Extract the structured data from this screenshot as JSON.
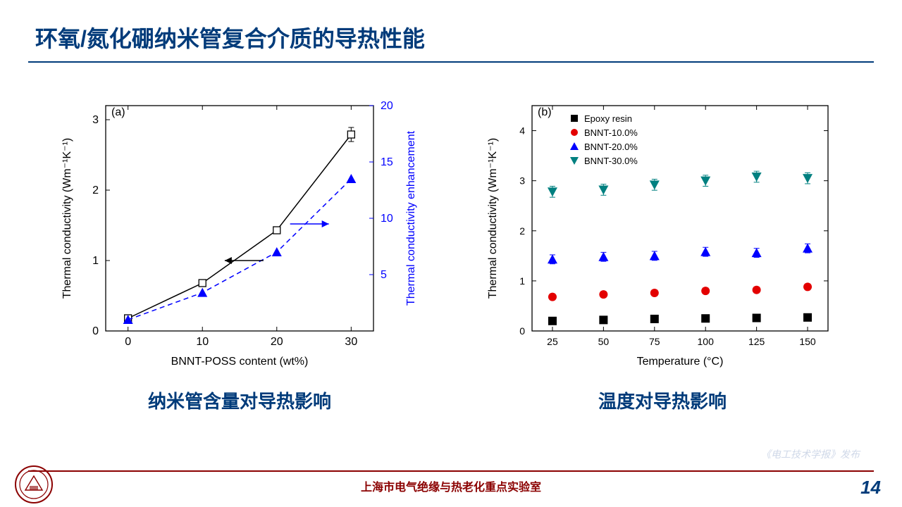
{
  "title": "环氧/氮化硼纳米管复合介质的导热性能",
  "chart_a": {
    "label": "(a)",
    "caption": "纳米管含量对导热影响",
    "xlabel": "BNNT-POSS content (wt%)",
    "ylabel_left": "Thermal conductivity (Wm⁻¹K⁻¹)",
    "ylabel_right": "Thermal conductivity enhancement",
    "x_ticks": [
      0,
      10,
      20,
      30
    ],
    "y1_ticks": [
      0,
      1,
      2,
      3
    ],
    "y2_ticks": [
      5,
      10,
      15,
      20
    ],
    "xlim": [
      -3,
      33
    ],
    "y1lim": [
      0,
      3.2
    ],
    "y2lim": [
      0,
      20
    ],
    "series1": {
      "name": "thermal-conductivity",
      "color": "#000000",
      "marker": "open-square",
      "line_dash": "solid",
      "data": [
        {
          "x": 0,
          "y": 0.18
        },
        {
          "x": 10,
          "y": 0.68
        },
        {
          "x": 20,
          "y": 1.43
        },
        {
          "x": 30,
          "y": 2.79
        }
      ],
      "error_bars": [
        0.02,
        0.04,
        0.05,
        0.1
      ]
    },
    "series2": {
      "name": "enhancement",
      "color": "#0000ff",
      "marker": "filled-triangle",
      "line_dash": "dashed",
      "data": [
        {
          "x": 0,
          "y": 1.0
        },
        {
          "x": 10,
          "y": 3.4
        },
        {
          "x": 20,
          "y": 7.0
        },
        {
          "x": 30,
          "y": 13.5
        }
      ]
    },
    "axis_font_size": 16,
    "tick_font_size": 16,
    "background_color": "#ffffff"
  },
  "chart_b": {
    "label": "(b)",
    "caption": "温度对导热影响",
    "xlabel": "Temperature (°C)",
    "ylabel": "Thermal conductivity (Wm⁻¹K⁻¹)",
    "x_ticks": [
      25,
      50,
      75,
      100,
      125,
      150
    ],
    "y_ticks": [
      0,
      1,
      2,
      3,
      4
    ],
    "xlim": [
      15,
      160
    ],
    "ylim": [
      0,
      4.5
    ],
    "legend": [
      {
        "label": "Epoxy resin",
        "marker": "filled-square",
        "color": "#000000"
      },
      {
        "label": "BNNT-10.0%",
        "marker": "filled-circle",
        "color": "#e30000"
      },
      {
        "label": "BNNT-20.0%",
        "marker": "filled-triangle-up",
        "color": "#0000ff"
      },
      {
        "label": "BNNT-30.0%",
        "marker": "filled-triangle-down",
        "color": "#008080"
      }
    ],
    "series": [
      {
        "color": "#000000",
        "marker": "filled-square",
        "data": [
          {
            "x": 25,
            "y": 0.2
          },
          {
            "x": 50,
            "y": 0.22
          },
          {
            "x": 75,
            "y": 0.24
          },
          {
            "x": 100,
            "y": 0.25
          },
          {
            "x": 125,
            "y": 0.26
          },
          {
            "x": 150,
            "y": 0.27
          }
        ],
        "err": 0.03
      },
      {
        "color": "#e30000",
        "marker": "filled-circle",
        "data": [
          {
            "x": 25,
            "y": 0.68
          },
          {
            "x": 50,
            "y": 0.73
          },
          {
            "x": 75,
            "y": 0.76
          },
          {
            "x": 100,
            "y": 0.8
          },
          {
            "x": 125,
            "y": 0.82
          },
          {
            "x": 150,
            "y": 0.88
          }
        ],
        "err": 0.06
      },
      {
        "color": "#0000ff",
        "marker": "filled-triangle-up",
        "data": [
          {
            "x": 25,
            "y": 1.43
          },
          {
            "x": 50,
            "y": 1.48
          },
          {
            "x": 75,
            "y": 1.5
          },
          {
            "x": 100,
            "y": 1.58
          },
          {
            "x": 125,
            "y": 1.56
          },
          {
            "x": 150,
            "y": 1.65
          }
        ],
        "err": 0.09
      },
      {
        "color": "#008080",
        "marker": "filled-triangle-down",
        "data": [
          {
            "x": 25,
            "y": 2.78
          },
          {
            "x": 50,
            "y": 2.82
          },
          {
            "x": 75,
            "y": 2.92
          },
          {
            "x": 100,
            "y": 3.0
          },
          {
            "x": 125,
            "y": 3.08
          },
          {
            "x": 150,
            "y": 3.05
          }
        ],
        "err": 0.11
      }
    ],
    "axis_font_size": 16,
    "tick_font_size": 14,
    "legend_font_size": 13,
    "background_color": "#ffffff"
  },
  "footer": {
    "lab_name": "上海市电气绝缘与热老化重点实验室",
    "page_number": "14",
    "watermark": "《电工技术学报》发布"
  },
  "colors": {
    "title": "#003b7a",
    "footer_line": "#8b0000",
    "footer_text": "#8b0000",
    "logo_ring": "#8b0000"
  }
}
